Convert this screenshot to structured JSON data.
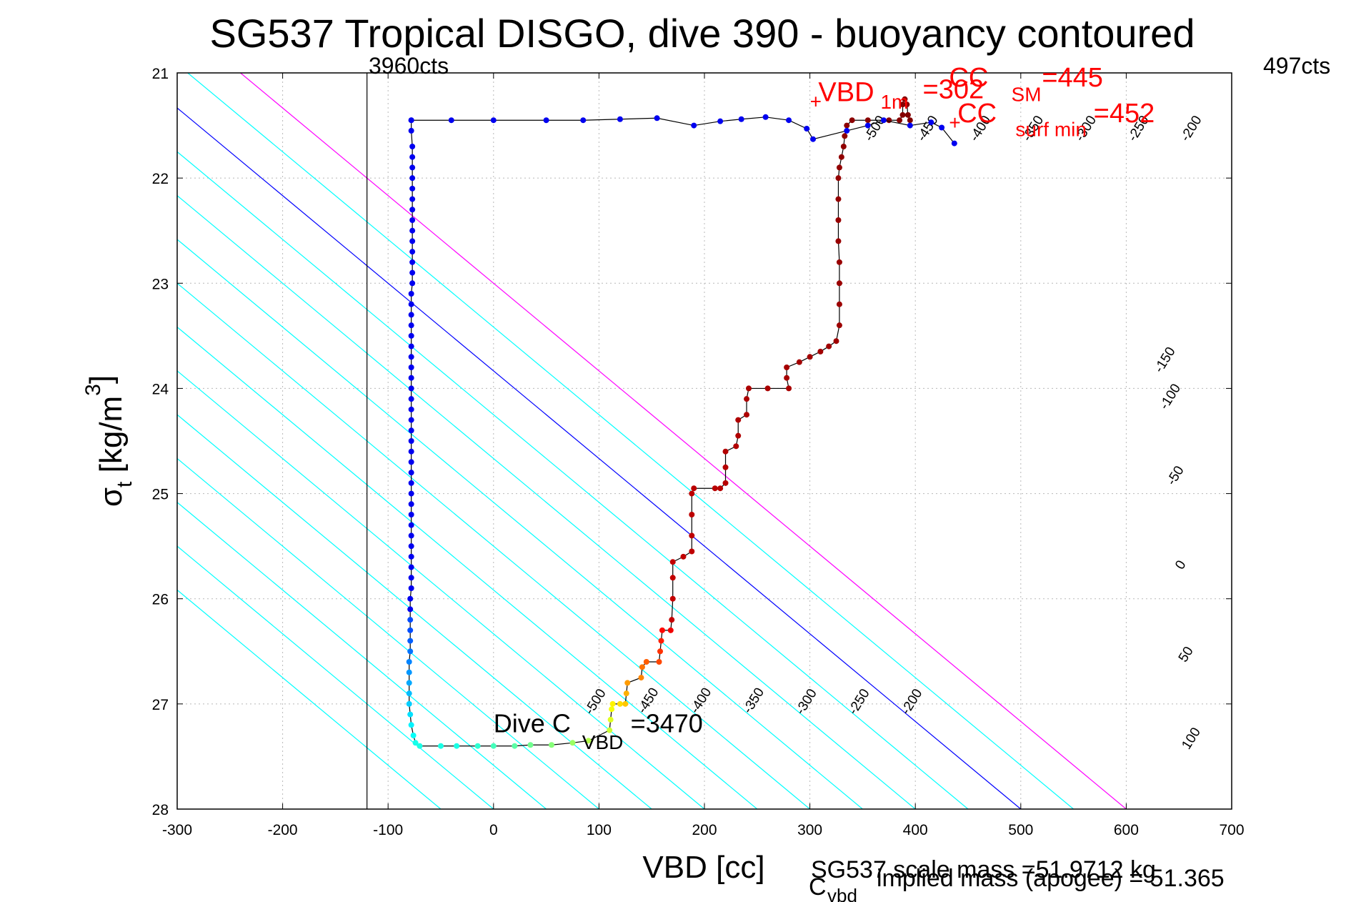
{
  "chart_data": {
    "type": "scatter",
    "title": "SG537 Tropical DISGO, dive 390 - buoyancy contoured",
    "xlabel": "VBD [cc]",
    "ylabel": "σt [kg/m3]",
    "xlim": [
      -300,
      700
    ],
    "ylim": [
      28,
      21
    ],
    "x_ticks": [
      "-300",
      "-200",
      "-100",
      "0",
      "100",
      "200",
      "300",
      "400",
      "500",
      "600",
      "700"
    ],
    "y_ticks": [
      "21",
      "22",
      "23",
      "24",
      "25",
      "26",
      "27",
      "28"
    ],
    "grid": true,
    "counts_annotations": {
      "left": {
        "x": -120,
        "label": "3960cts"
      },
      "right": {
        "label": "497cts"
      }
    },
    "contours": {
      "slope_cc_per_sigma": 120,
      "levels": [
        {
          "value": -550,
          "ref_x": -50,
          "color": "#00ffff",
          "label": ""
        },
        {
          "value": -500,
          "ref_x": 0,
          "color": "#00ffff",
          "label": "-500"
        },
        {
          "value": -450,
          "ref_x": 50,
          "color": "#00ffff",
          "label": "-450"
        },
        {
          "value": -400,
          "ref_x": 100,
          "color": "#00ffff",
          "label": "-400"
        },
        {
          "value": -350,
          "ref_x": 150,
          "color": "#00ffff",
          "label": "-350"
        },
        {
          "value": -300,
          "ref_x": 200,
          "color": "#00ffff",
          "label": "-300"
        },
        {
          "value": -250,
          "ref_x": 250,
          "color": "#00ffff",
          "label": "-250"
        },
        {
          "value": -200,
          "ref_x": 300,
          "color": "#00ffff",
          "label": "-200"
        },
        {
          "value": -150,
          "ref_x": 350,
          "color": "#00ffff",
          "label": "-150"
        },
        {
          "value": -100,
          "ref_x": 400,
          "color": "#00ffff",
          "label": "-100"
        },
        {
          "value": -50,
          "ref_x": 450,
          "color": "#00ffff",
          "label": "-50"
        },
        {
          "value": 0,
          "ref_x": 500,
          "color": "#0000ff",
          "label": "0"
        },
        {
          "value": 50,
          "ref_x": 550,
          "color": "#00ffff",
          "label": "50"
        },
        {
          "value": 100,
          "ref_x": 600,
          "color": "#ff00ff",
          "label": "100"
        }
      ],
      "label_positions": [
        {
          "label": "-500",
          "x": 100,
          "y": 27
        },
        {
          "label": "-450",
          "x": 150,
          "y": 26.99
        },
        {
          "label": "-400",
          "x": 200,
          "y": 26.99
        },
        {
          "label": "-350",
          "x": 250,
          "y": 26.99
        },
        {
          "label": "-300",
          "x": 300,
          "y": 27
        },
        {
          "label": "-250",
          "x": 350,
          "y": 27
        },
        {
          "label": "-200",
          "x": 400,
          "y": 27
        },
        {
          "label": "-500",
          "x": 365,
          "y": 21.55
        },
        {
          "label": "-450",
          "x": 415,
          "y": 21.55
        },
        {
          "label": "-400",
          "x": 465,
          "y": 21.55
        },
        {
          "label": "-350",
          "x": 515,
          "y": 21.55
        },
        {
          "label": "-300",
          "x": 565,
          "y": 21.55
        },
        {
          "label": "-250",
          "x": 615,
          "y": 21.55
        },
        {
          "label": "-200",
          "x": 665,
          "y": 21.55
        },
        {
          "label": "-150",
          "x": 640,
          "y": 23.75
        },
        {
          "label": "-100",
          "x": 645,
          "y": 24.1
        },
        {
          "label": "-50",
          "x": 650,
          "y": 24.85
        },
        {
          "label": "0",
          "x": 655,
          "y": 25.7
        },
        {
          "label": "50",
          "x": 660,
          "y": 26.55
        },
        {
          "label": "100",
          "x": 665,
          "y": 27.35
        }
      ]
    },
    "series": [
      {
        "name": "dive",
        "points": [
          [
            -78,
            21.45
          ],
          [
            -78,
            21.55
          ],
          [
            -77,
            21.7
          ],
          [
            -77,
            21.8
          ],
          [
            -77,
            21.9
          ],
          [
            -77,
            22.0
          ],
          [
            -77,
            22.1
          ],
          [
            -77,
            22.2
          ],
          [
            -77,
            22.3
          ],
          [
            -77,
            22.4
          ],
          [
            -77,
            22.5
          ],
          [
            -77,
            22.6
          ],
          [
            -77,
            22.7
          ],
          [
            -77,
            22.8
          ],
          [
            -77,
            22.9
          ],
          [
            -77,
            23.0
          ],
          [
            -78,
            23.1
          ],
          [
            -78,
            23.2
          ],
          [
            -78,
            23.3
          ],
          [
            -78,
            23.4
          ],
          [
            -78,
            23.5
          ],
          [
            -78,
            23.6
          ],
          [
            -78,
            23.7
          ],
          [
            -78,
            23.8
          ],
          [
            -78,
            23.9
          ],
          [
            -78,
            24.0
          ],
          [
            -78,
            24.1
          ],
          [
            -78,
            24.2
          ],
          [
            -78,
            24.3
          ],
          [
            -78,
            24.4
          ],
          [
            -78,
            24.5
          ],
          [
            -78,
            24.6
          ],
          [
            -78,
            24.7
          ],
          [
            -78,
            24.8
          ],
          [
            -78,
            24.9
          ],
          [
            -78,
            25.0
          ],
          [
            -78,
            25.1
          ],
          [
            -78,
            25.2
          ],
          [
            -78,
            25.3
          ],
          [
            -78,
            25.4
          ],
          [
            -78,
            25.5
          ],
          [
            -78,
            25.6
          ],
          [
            -78,
            25.7
          ],
          [
            -78,
            25.8
          ],
          [
            -78,
            25.9
          ],
          [
            -79,
            26.0
          ],
          [
            -79,
            26.1
          ],
          [
            -79,
            26.2
          ],
          [
            -79,
            26.3
          ],
          [
            -79,
            26.4
          ],
          [
            -79,
            26.5
          ],
          [
            -80,
            26.6
          ],
          [
            -80,
            26.7
          ],
          [
            -80,
            26.8
          ],
          [
            -80,
            26.9
          ],
          [
            -80,
            27.0
          ],
          [
            -79,
            27.1
          ],
          [
            -78,
            27.2
          ],
          [
            -76,
            27.3
          ],
          [
            -74,
            27.37
          ],
          [
            -70,
            27.4
          ],
          [
            -50,
            27.4
          ],
          [
            -35,
            27.4
          ],
          [
            -15,
            27.4
          ],
          [
            0,
            27.4
          ],
          [
            20,
            27.4
          ],
          [
            35,
            27.39
          ],
          [
            55,
            27.39
          ],
          [
            75,
            27.37
          ],
          [
            90,
            27.35
          ],
          [
            110,
            27.25
          ],
          [
            111,
            27.15
          ],
          [
            112,
            27.05
          ],
          [
            113,
            27.0
          ],
          [
            120,
            27.0
          ],
          [
            125,
            27.0
          ],
          [
            126,
            26.9
          ],
          [
            127,
            26.8
          ],
          [
            140,
            26.75
          ],
          [
            141,
            26.65
          ],
          [
            145,
            26.6
          ],
          [
            157,
            26.6
          ],
          [
            158,
            26.5
          ],
          [
            159,
            26.4
          ],
          [
            160,
            26.3
          ],
          [
            168,
            26.3
          ],
          [
            169,
            26.2
          ],
          [
            170,
            26.0
          ],
          [
            170,
            25.8
          ],
          [
            170,
            25.65
          ],
          [
            180,
            25.6
          ],
          [
            188,
            25.55
          ],
          [
            188,
            25.4
          ],
          [
            188,
            25.2
          ],
          [
            188,
            25.0
          ],
          [
            190,
            24.95
          ],
          [
            210,
            24.95
          ],
          [
            215,
            24.95
          ],
          [
            220,
            24.9
          ],
          [
            220,
            24.75
          ],
          [
            220,
            24.6
          ],
          [
            230,
            24.55
          ],
          [
            232,
            24.45
          ],
          [
            232,
            24.3
          ],
          [
            240,
            24.25
          ],
          [
            240,
            24.1
          ],
          [
            242,
            24.0
          ],
          [
            260,
            24.0
          ],
          [
            280,
            24.0
          ],
          [
            278,
            23.9
          ],
          [
            278,
            23.8
          ],
          [
            290,
            23.75
          ],
          [
            300,
            23.7
          ],
          [
            310,
            23.65
          ],
          [
            318,
            23.6
          ],
          [
            325,
            23.55
          ],
          [
            328,
            23.4
          ],
          [
            328,
            23.2
          ],
          [
            328,
            23.0
          ],
          [
            328,
            22.8
          ],
          [
            327,
            22.6
          ],
          [
            327,
            22.4
          ],
          [
            327,
            22.2
          ],
          [
            327,
            22.0
          ],
          [
            328,
            21.9
          ],
          [
            330,
            21.8
          ],
          [
            332,
            21.7
          ],
          [
            333,
            21.6
          ],
          [
            335,
            21.5
          ],
          [
            340,
            21.45
          ],
          [
            355,
            21.45
          ],
          [
            375,
            21.45
          ],
          [
            385,
            21.45
          ],
          [
            388,
            21.4
          ],
          [
            388,
            21.3
          ],
          [
            390,
            21.25
          ],
          [
            392,
            21.3
          ],
          [
            393,
            21.4
          ],
          [
            395,
            21.45
          ]
        ]
      },
      {
        "name": "climb",
        "points": [
          [
            -78,
            21.45
          ],
          [
            -40,
            21.45
          ],
          [
            0,
            21.45
          ],
          [
            50,
            21.45
          ],
          [
            85,
            21.45
          ],
          [
            120,
            21.44
          ],
          [
            155,
            21.43
          ],
          [
            190,
            21.5
          ],
          [
            215,
            21.46
          ],
          [
            235,
            21.44
          ],
          [
            258,
            21.42
          ],
          [
            280,
            21.45
          ],
          [
            297,
            21.53
          ],
          [
            303,
            21.63
          ],
          [
            335,
            21.55
          ],
          [
            355,
            21.5
          ],
          [
            370,
            21.45
          ],
          [
            395,
            21.5
          ],
          [
            415,
            21.47
          ],
          [
            425,
            21.52
          ],
          [
            437,
            21.67
          ]
        ]
      }
    ],
    "annotations": [
      {
        "text": "+",
        "x": 300,
        "y": 21.27
      },
      {
        "text": "VBD",
        "x": 308,
        "y": 21.27
      },
      {
        "text": "1m",
        "x": 367,
        "y": 21.34
      },
      {
        "text": "=302",
        "x": 407,
        "y": 21.24
      },
      {
        "text": "CC",
        "x": 432,
        "y": 21.13
      },
      {
        "text": "SM",
        "x": 491,
        "y": 21.27
      },
      {
        "text": "=445",
        "x": 520,
        "y": 21.13
      },
      {
        "text": "+",
        "x": 432,
        "y": 21.47
      },
      {
        "text": "CC",
        "x": 440,
        "y": 21.47
      },
      {
        "text": "surf min",
        "x": 495,
        "y": 21.6
      },
      {
        "text": "=452",
        "x": 569,
        "y": 21.47
      },
      {
        "text": "Dive C",
        "x": 0,
        "y": 27.27
      },
      {
        "text": "VBD",
        "x": 84,
        "y": 27.43
      },
      {
        "text": "=3470",
        "x": 130,
        "y": 27.27
      }
    ],
    "footer": [
      {
        "text": "SG537 scale mass =51.9712 kg"
      },
      {
        "text": "C"
      },
      {
        "text": "vbd"
      },
      {
        "text": "implied mass (apogee) = 51.365"
      }
    ]
  }
}
